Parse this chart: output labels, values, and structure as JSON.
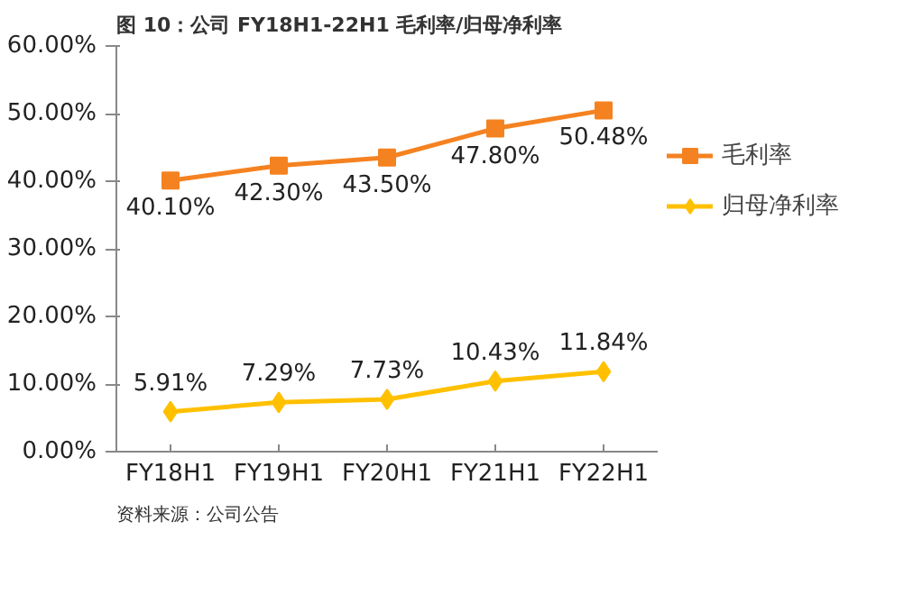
{
  "chart_data": {
    "type": "line",
    "title": "图 10：公司 FY18H1-22H1 毛利率/归母净利率",
    "categories": [
      "FY18H1",
      "FY19H1",
      "FY20H1",
      "FY21H1",
      "FY22H1"
    ],
    "series": [
      {
        "name": "毛利率",
        "color": "#f58220",
        "marker": "square",
        "values": [
          40.1,
          42.3,
          43.5,
          47.8,
          50.48
        ],
        "value_labels": [
          "40.10%",
          "42.30%",
          "43.50%",
          "47.80%",
          "50.48%"
        ]
      },
      {
        "name": "归母净利率",
        "color": "#ffc000",
        "marker": "diamond",
        "values": [
          5.91,
          7.29,
          7.73,
          10.43,
          11.84
        ],
        "value_labels": [
          "5.91%",
          "7.29%",
          "7.73%",
          "10.43%",
          "11.84%"
        ]
      }
    ],
    "ylim": [
      0,
      60
    ],
    "yticks": [
      {
        "value": 0,
        "label": "0.00%"
      },
      {
        "value": 10,
        "label": "10.00%"
      },
      {
        "value": 20,
        "label": "20.00%"
      },
      {
        "value": 30,
        "label": "30.00%"
      },
      {
        "value": 40,
        "label": "40.00%"
      },
      {
        "value": 50,
        "label": "50.00%"
      },
      {
        "value": 60,
        "label": "60.00%"
      }
    ],
    "grid": false,
    "legend": "right",
    "line_style": "solid",
    "annotations": [
      "资料来源：公司公告"
    ]
  }
}
